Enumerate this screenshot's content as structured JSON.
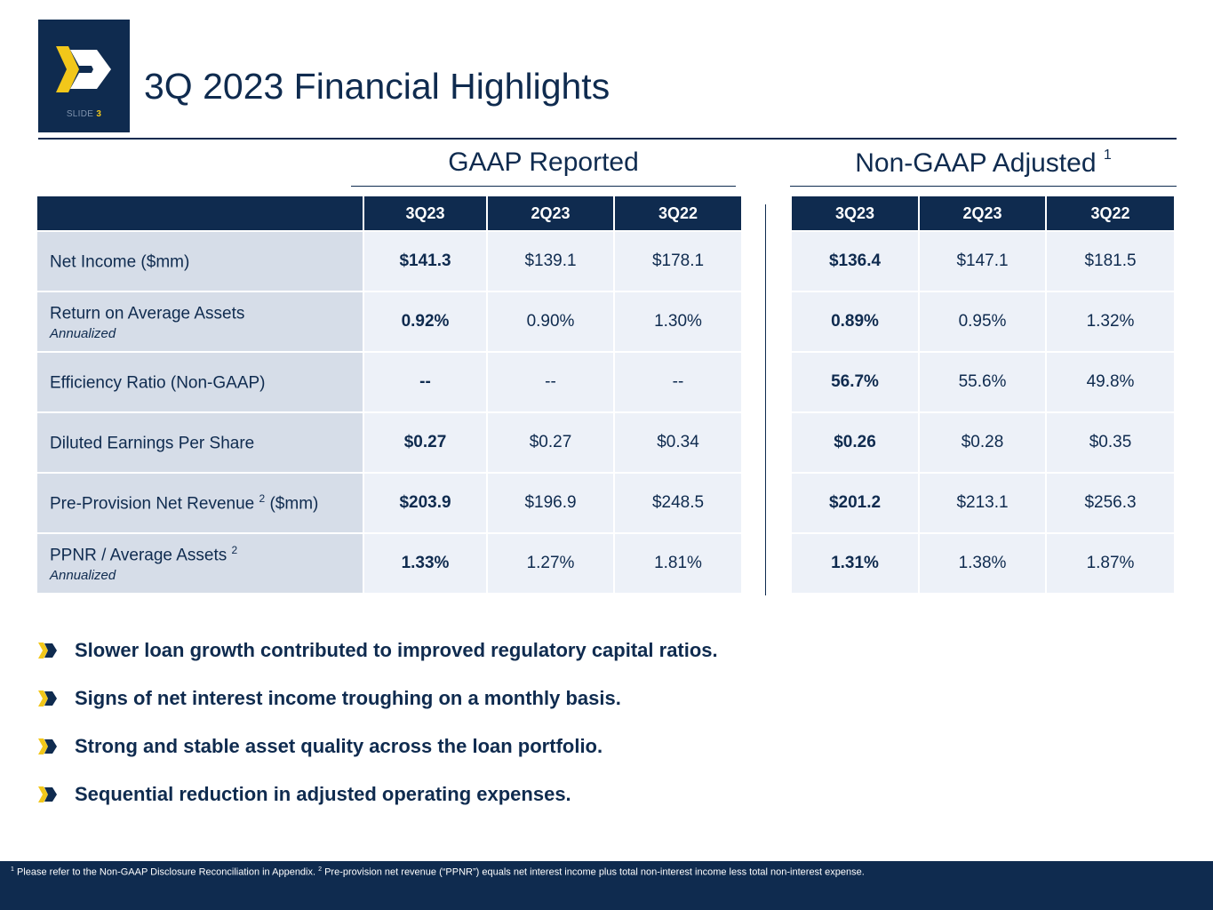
{
  "logo": {
    "slide_prefix": "SLIDE",
    "slide_number": "3",
    "colors": {
      "navy": "#0f2b4f",
      "gold": "#f2c71a"
    }
  },
  "title": "3Q 2023 Financial Highlights",
  "gaap": {
    "heading": "GAAP Reported",
    "columns": [
      "3Q23",
      "2Q23",
      "3Q22"
    ]
  },
  "non_gaap": {
    "heading": "Non-GAAP Adjusted",
    "heading_sup": "1",
    "columns": [
      "3Q23",
      "2Q23",
      "3Q22"
    ]
  },
  "rows": [
    {
      "label": "Net Income ($mm)",
      "label_sup": "",
      "label_suffix": "",
      "sub": "",
      "gaap": [
        "$141.3",
        "$139.1",
        "$178.1"
      ],
      "non_gaap": [
        "$136.4",
        "$147.1",
        "$181.5"
      ]
    },
    {
      "label": "Return on Average Assets",
      "label_sup": "",
      "label_suffix": "",
      "sub": "Annualized",
      "gaap": [
        "0.92%",
        "0.90%",
        "1.30%"
      ],
      "non_gaap": [
        "0.89%",
        "0.95%",
        "1.32%"
      ]
    },
    {
      "label": "Efficiency Ratio (Non-GAAP)",
      "label_sup": "",
      "label_suffix": "",
      "sub": "",
      "gaap": [
        "--",
        "--",
        "--"
      ],
      "non_gaap": [
        "56.7%",
        "55.6%",
        "49.8%"
      ]
    },
    {
      "label": "Diluted Earnings Per Share",
      "label_sup": "",
      "label_suffix": "",
      "sub": "",
      "gaap": [
        "$0.27",
        "$0.27",
        "$0.34"
      ],
      "non_gaap": [
        "$0.26",
        "$0.28",
        "$0.35"
      ]
    },
    {
      "label": "Pre-Provision Net Revenue ",
      "label_sup": "2",
      "label_suffix": " ($mm)",
      "sub": "",
      "gaap": [
        "$203.9",
        "$196.9",
        "$248.5"
      ],
      "non_gaap": [
        "$201.2",
        "$213.1",
        "$256.3"
      ]
    },
    {
      "label": "PPNR / Average Assets ",
      "label_sup": "2",
      "label_suffix": "",
      "sub": "Annualized",
      "gaap": [
        "1.33%",
        "1.27%",
        "1.81%"
      ],
      "non_gaap": [
        "1.31%",
        "1.38%",
        "1.87%"
      ]
    }
  ],
  "bullets": [
    "Slower loan growth contributed to improved regulatory capital ratios.",
    "Signs of net interest income troughing on a monthly basis.",
    "Strong and stable asset quality across the loan portfolio.",
    "Sequential reduction in adjusted operating expenses."
  ],
  "footnote": {
    "n1": "1",
    "t1": " Please refer to the Non-GAAP Disclosure Reconciliation in Appendix.  ",
    "n2": "2",
    "t2": " Pre-provision net revenue (“PPNR”) equals net interest income plus total non-interest income less total non-interest expense."
  }
}
